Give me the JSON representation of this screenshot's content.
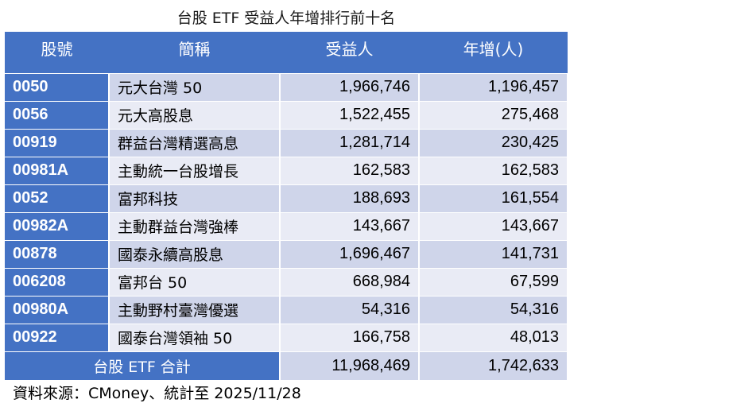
{
  "title": "台股 ETF 受益人年增排行前十名",
  "chart_data": {
    "type": "table",
    "columns": [
      "股號",
      "簡稱",
      "受益人",
      "年增(人)"
    ],
    "rows": [
      {
        "code": "0050",
        "name": "元大台灣 50",
        "holders": "1,966,746",
        "growth": "1,196,457"
      },
      {
        "code": "0056",
        "name": "元大高股息",
        "holders": "1,522,455",
        "growth": "275,468"
      },
      {
        "code": "00919",
        "name": "群益台灣精選高息",
        "holders": "1,281,714",
        "growth": "230,425"
      },
      {
        "code": "00981A",
        "name": "主動統一台股增長",
        "holders": "162,583",
        "growth": "162,583"
      },
      {
        "code": "0052",
        "name": "富邦科技",
        "holders": "188,693",
        "growth": "161,554"
      },
      {
        "code": "00982A",
        "name": "主動群益台灣強棒",
        "holders": "143,667",
        "growth": "143,667"
      },
      {
        "code": "00878",
        "name": "國泰永續高股息",
        "holders": "1,696,467",
        "growth": "141,731"
      },
      {
        "code": "006208",
        "name": "富邦台 50",
        "holders": "668,984",
        "growth": "67,599"
      },
      {
        "code": "00980A",
        "name": "主動野村臺灣優選",
        "holders": "54,316",
        "growth": "54,316"
      },
      {
        "code": "00922",
        "name": "國泰台灣領袖 50",
        "holders": "166,758",
        "growth": "48,013"
      }
    ],
    "total": {
      "label": "台股 ETF 合計",
      "holders": "11,968,469",
      "growth": "1,742,633"
    }
  },
  "source": "資料來源：CMoney、統計至 2025/11/28",
  "colors": {
    "header": "#4472c4",
    "row_a": "#cfd5ea",
    "row_b": "#e9ebf5"
  }
}
